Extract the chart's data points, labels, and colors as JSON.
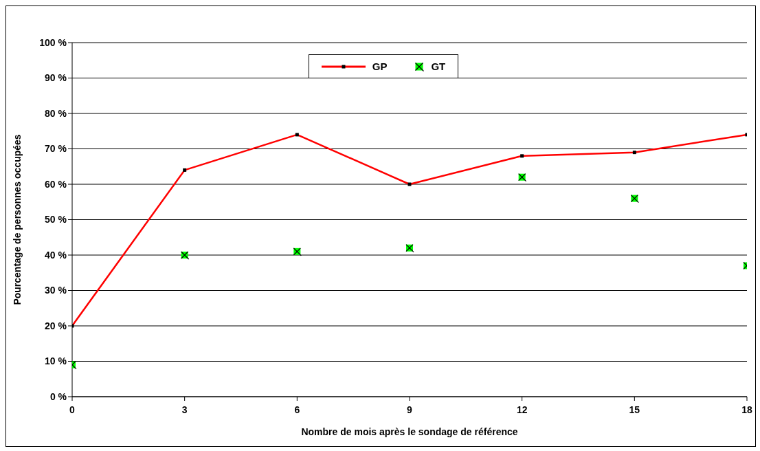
{
  "chart_data": {
    "type": "line",
    "xlabel": "Nombre de mois après le sondage de référence",
    "ylabel": "Pourcentage de personnes occupées",
    "x": [
      0,
      3,
      6,
      9,
      12,
      15,
      18
    ],
    "series": [
      {
        "name": "GP",
        "color": "#ff0000",
        "marker": "square",
        "values": [
          20,
          64,
          74,
          60,
          68,
          69,
          74
        ]
      },
      {
        "name": "GT",
        "type": "scatter",
        "color": "#00ff00",
        "marker": "square",
        "values": [
          9,
          40,
          41,
          42,
          62,
          56,
          37
        ]
      }
    ],
    "xlim": [
      0,
      18
    ],
    "xticks": [
      0,
      3,
      6,
      9,
      12,
      15,
      18
    ],
    "ylim": [
      0,
      100
    ],
    "yticks": [
      {
        "value": 0,
        "label": "0 %"
      },
      {
        "value": 10,
        "label": "10 %"
      },
      {
        "value": 20,
        "label": "20 %"
      },
      {
        "value": 30,
        "label": "30 %"
      },
      {
        "value": 40,
        "label": "40 %"
      },
      {
        "value": 50,
        "label": "50 %"
      },
      {
        "value": 60,
        "label": "60 %"
      },
      {
        "value": 70,
        "label": "70 %"
      },
      {
        "value": 80,
        "label": "80 %"
      },
      {
        "value": 90,
        "label": "90 %"
      },
      {
        "value": 100,
        "label": "100 %"
      }
    ],
    "grid": "y",
    "legend": "top"
  }
}
